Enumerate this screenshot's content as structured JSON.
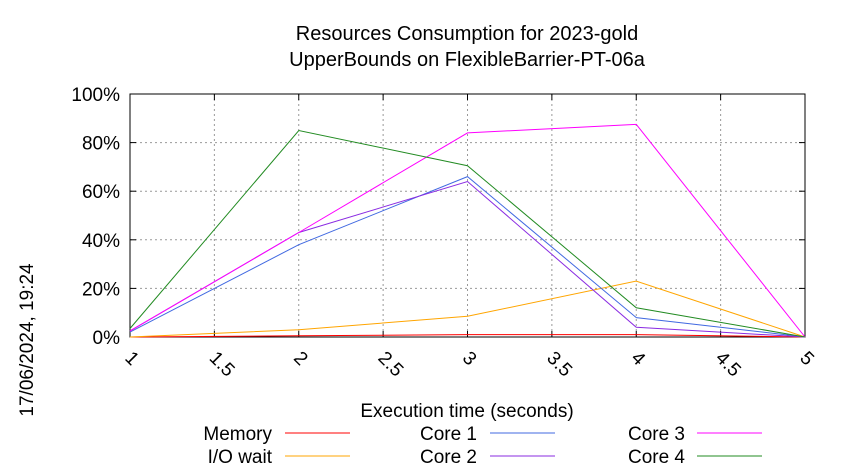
{
  "chart_data": {
    "type": "line",
    "title_line1": "Resources Consumption for 2023-gold",
    "title_line2": "UpperBounds on FlexibleBarrier-PT-06a",
    "xlabel": "Execution time (seconds)",
    "ylabel": "",
    "side_label": "17/06/2024, 19:24",
    "xlim": [
      1,
      5
    ],
    "ylim": [
      0,
      100
    ],
    "x_ticks": [
      "1",
      "1.5",
      "2",
      "2.5",
      "3",
      "3.5",
      "4",
      "4.5",
      "5"
    ],
    "x_tick_values": [
      1,
      1.5,
      2,
      2.5,
      3,
      3.5,
      4,
      4.5,
      5
    ],
    "y_ticks": [
      "0%",
      "20%",
      "40%",
      "60%",
      "80%",
      "100%"
    ],
    "y_tick_values": [
      0,
      20,
      40,
      60,
      80,
      100
    ],
    "grid": true,
    "legend_placement": "bottom",
    "x": [
      1,
      2,
      3,
      4,
      5
    ],
    "series": [
      {
        "name": "Memory",
        "color": "#ff0000",
        "values": [
          0,
          0.5,
          1,
          1,
          0
        ]
      },
      {
        "name": "I/O wait",
        "color": "#ffa500",
        "values": [
          0,
          3,
          8.5,
          23,
          0
        ]
      },
      {
        "name": "Core 1",
        "color": "#4169e1",
        "values": [
          2,
          38,
          66,
          8,
          0
        ]
      },
      {
        "name": "Core 2",
        "color": "#8a2be2",
        "values": [
          2.5,
          43,
          64,
          4,
          0
        ]
      },
      {
        "name": "Core 3",
        "color": "#ff00ff",
        "values": [
          2.5,
          43,
          84,
          87.5,
          0
        ]
      },
      {
        "name": "Core 4",
        "color": "#228b22",
        "values": [
          3.5,
          85,
          70.5,
          12,
          0
        ]
      }
    ]
  }
}
